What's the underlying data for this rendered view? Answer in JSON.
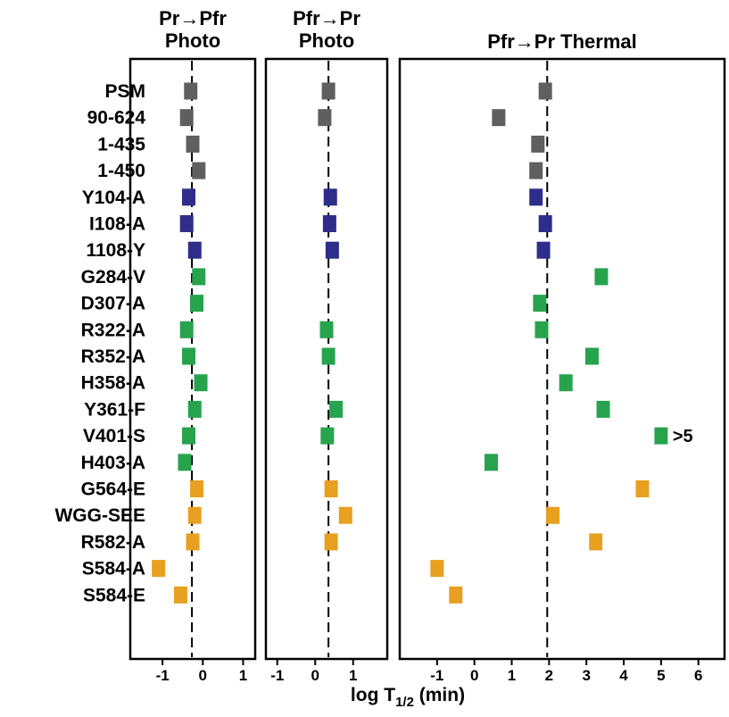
{
  "chart_data": {
    "type": "scatter",
    "xlabel_main": "log T",
    "xlabel_sub": "1/2",
    "xlabel_tail": " (min)",
    "colors": {
      "wild-type": "#5f5f5f",
      "tyr-ile": "#2e2e8a",
      "chromophore": "#27a34e",
      "phy-domain": "#e8a020"
    },
    "rows": [
      {
        "label": "PSM",
        "group": "wild-type"
      },
      {
        "label": "90-624",
        "group": "wild-type"
      },
      {
        "label": "1-435",
        "group": "wild-type"
      },
      {
        "label": "1-450",
        "group": "wild-type"
      },
      {
        "label": "Y104-A",
        "group": "tyr-ile"
      },
      {
        "label": "I108-A",
        "group": "tyr-ile"
      },
      {
        "label": "1108-Y",
        "group": "tyr-ile"
      },
      {
        "label": "G284-V",
        "group": "chromophore"
      },
      {
        "label": "D307-A",
        "group": "chromophore"
      },
      {
        "label": "R322-A",
        "group": "chromophore"
      },
      {
        "label": "R352-A",
        "group": "chromophore"
      },
      {
        "label": "H358-A",
        "group": "chromophore"
      },
      {
        "label": "Y361-F",
        "group": "chromophore"
      },
      {
        "label": "V401-S",
        "group": "chromophore"
      },
      {
        "label": "H403-A",
        "group": "chromophore"
      },
      {
        "label": "G564-E",
        "group": "phy-domain"
      },
      {
        "label": "WGG-SEE",
        "group": "phy-domain"
      },
      {
        "label": "R582-A",
        "group": "phy-domain"
      },
      {
        "label": "S584-A",
        "group": "phy-domain"
      },
      {
        "label": "S584-E",
        "group": "phy-domain"
      }
    ],
    "panels": [
      {
        "id": "pr-pfr-photo",
        "title": [
          "Pr→Pfr",
          "Photo"
        ],
        "xlim": [
          -1.8,
          1.3
        ],
        "ticks": [
          -1,
          0,
          1
        ],
        "ref_line": -0.27,
        "values": [
          -0.3,
          -0.4,
          -0.25,
          -0.1,
          -0.35,
          -0.4,
          -0.2,
          -0.1,
          -0.15,
          -0.4,
          -0.35,
          -0.05,
          -0.2,
          -0.35,
          -0.45,
          -0.15,
          -0.2,
          -0.25,
          -1.1,
          -0.55
        ]
      },
      {
        "id": "pfr-pr-photo",
        "title": [
          "Pfr→Pr",
          "Photo"
        ],
        "xlim": [
          -1.3,
          1.9
        ],
        "ticks": [
          -1,
          0,
          1
        ],
        "ref_line": 0.35,
        "values": [
          0.35,
          0.25,
          null,
          null,
          0.4,
          0.38,
          0.45,
          null,
          null,
          0.3,
          0.35,
          null,
          0.55,
          0.32,
          null,
          0.42,
          0.8,
          0.42,
          null,
          null
        ]
      },
      {
        "id": "pfr-pr-thermal",
        "title": [
          "Pfr→Pr Thermal"
        ],
        "xlim": [
          -2.0,
          6.7
        ],
        "ticks": [
          -1,
          0,
          1,
          2,
          3,
          4,
          5,
          6
        ],
        "ref_line": 1.95,
        "values": [
          1.9,
          0.65,
          1.7,
          1.65,
          1.65,
          1.9,
          1.85,
          3.4,
          1.75,
          1.8,
          3.15,
          2.45,
          3.45,
          5.0,
          0.45,
          4.5,
          2.1,
          3.25,
          -1.0,
          -0.5
        ]
      }
    ],
    "annotations": [
      {
        "panel": "pfr-pr-thermal",
        "row": "V401-S",
        "text": ">5"
      }
    ]
  }
}
